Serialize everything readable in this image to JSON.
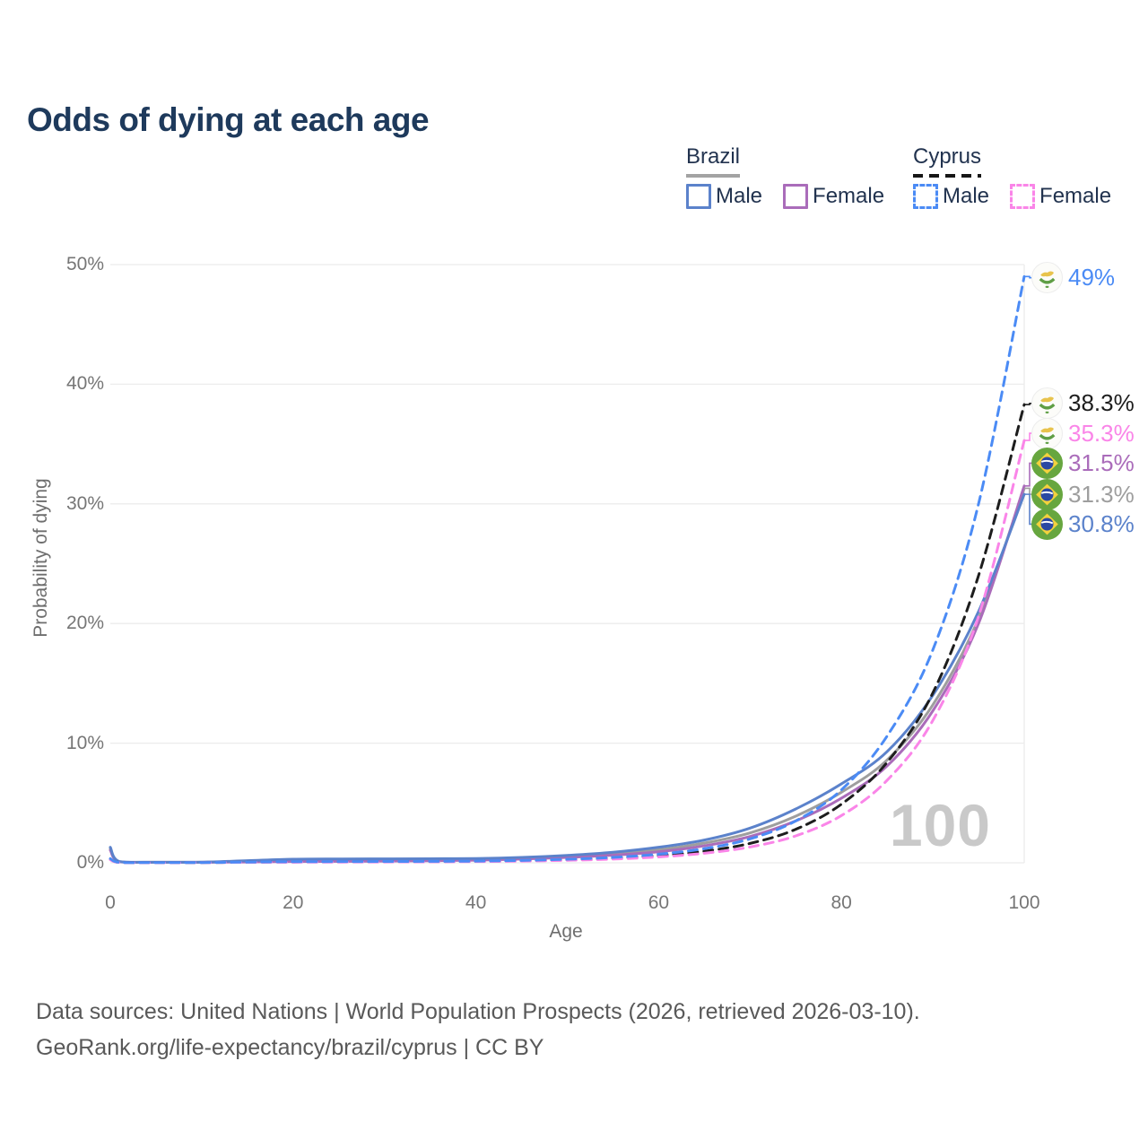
{
  "header": {
    "title": "Odds of dying at each age"
  },
  "legend": {
    "brazil": {
      "title": "Brazil",
      "male_label": "Male",
      "female_label": "Female"
    },
    "cyprus": {
      "title": "Cyprus",
      "male_label": "Male",
      "female_label": "Female"
    }
  },
  "watermark": "100",
  "footer": {
    "line1": "Data sources: United Nations | World Population Prospects (2026, retrieved 2026-03-10).",
    "line2": "GeoRank.org/life-expectancy/brazil/cyprus | CC BY"
  },
  "colors": {
    "title": "#1e3a5c",
    "legend_text": "#22334f",
    "brazil_underline": "#a3a3a3",
    "cyprus_underline": "#161616",
    "brazil_male": "#5b82cb",
    "brazil_female": "#aa6cba",
    "brazil_all": "#9e9e9e",
    "cyprus_male": "#4b8bf5",
    "cyprus_all": "#1d1d1d",
    "cyprus_female": "#fa85e8",
    "grid": "#ececec",
    "axis_text": "#767676",
    "watermark": "#c9c9c9",
    "flag_brazil_green": "#67a63f",
    "flag_brazil_yellow": "#f3d23d",
    "flag_brazil_blue": "#2b49a3",
    "flag_cyprus_copper": "#e8c34c",
    "flag_cyprus_green": "#5f9e45"
  },
  "chart_data": {
    "type": "line",
    "title": "Odds of dying at each age",
    "xlabel": "Age",
    "ylabel": "Probability of dying",
    "xlim": [
      0,
      100
    ],
    "ylim": [
      0,
      50
    ],
    "x_ticks": [
      0,
      20,
      40,
      60,
      80,
      100
    ],
    "y_ticks": [
      0,
      10,
      20,
      30,
      40,
      50
    ],
    "y_tick_suffix": "%",
    "grid": "horizontal plus right vertical edge line at age 100",
    "legend_position": "top-right",
    "x": [
      0,
      1,
      5,
      10,
      15,
      20,
      25,
      30,
      35,
      40,
      45,
      50,
      55,
      60,
      65,
      70,
      75,
      80,
      85,
      90,
      95,
      100
    ],
    "series": [
      {
        "name": "Brazil Both sexes",
        "country": "Brazil",
        "style": "solid",
        "color_key": "brazil_all",
        "values": [
          1.18,
          0.09,
          0.05,
          0.05,
          0.12,
          0.2,
          0.22,
          0.23,
          0.25,
          0.29,
          0.38,
          0.53,
          0.75,
          1.1,
          1.65,
          2.5,
          3.9,
          5.9,
          8.6,
          13.2,
          20.4,
          31.3
        ]
      },
      {
        "name": "Brazil Female",
        "country": "Brazil",
        "style": "solid",
        "color_key": "brazil_female",
        "values": [
          1.05,
          0.08,
          0.04,
          0.04,
          0.07,
          0.1,
          0.12,
          0.14,
          0.17,
          0.22,
          0.31,
          0.45,
          0.64,
          0.92,
          1.42,
          2.2,
          3.5,
          5.4,
          8.1,
          12.7,
          20.0,
          31.5
        ]
      },
      {
        "name": "Brazil Male",
        "country": "Brazil",
        "style": "solid",
        "color_key": "brazil_male",
        "values": [
          1.3,
          0.1,
          0.05,
          0.06,
          0.18,
          0.3,
          0.32,
          0.33,
          0.34,
          0.36,
          0.45,
          0.62,
          0.88,
          1.3,
          1.9,
          2.9,
          4.5,
          6.6,
          9.3,
          14.0,
          21.0,
          30.8
        ]
      },
      {
        "name": "Cyprus Both sexes",
        "country": "Cyprus",
        "style": "dashed",
        "color_key": "cyprus_all",
        "values": [
          0.3,
          0.03,
          0.02,
          0.02,
          0.05,
          0.07,
          0.08,
          0.09,
          0.1,
          0.12,
          0.17,
          0.25,
          0.38,
          0.6,
          0.97,
          1.62,
          2.8,
          4.9,
          8.4,
          14.2,
          24.0,
          38.3
        ]
      },
      {
        "name": "Cyprus Female",
        "country": "Cyprus",
        "style": "dashed",
        "color_key": "cyprus_female",
        "values": [
          0.25,
          0.02,
          0.01,
          0.02,
          0.04,
          0.05,
          0.06,
          0.07,
          0.08,
          0.1,
          0.14,
          0.21,
          0.31,
          0.49,
          0.8,
          1.32,
          2.25,
          3.95,
          6.9,
          11.9,
          20.6,
          35.3
        ]
      },
      {
        "name": "Cyprus Male",
        "country": "Cyprus",
        "style": "dashed",
        "color_key": "cyprus_male",
        "values": [
          0.35,
          0.03,
          0.02,
          0.02,
          0.06,
          0.09,
          0.1,
          0.11,
          0.12,
          0.14,
          0.2,
          0.3,
          0.45,
          0.72,
          1.18,
          2.0,
          3.5,
          6.1,
          10.6,
          17.8,
          30.0,
          49.0
        ]
      }
    ],
    "end_labels": [
      {
        "text": "49%",
        "value": 49.0,
        "label_pct": 48.9,
        "flag": "cyprus",
        "color_key": "cyprus_male"
      },
      {
        "text": "38.3%",
        "value": 38.3,
        "label_pct": 38.4,
        "flag": "cyprus",
        "color_key": "cyprus_all"
      },
      {
        "text": "35.3%",
        "value": 35.3,
        "label_pct": 35.9,
        "flag": "cyprus",
        "color_key": "cyprus_female"
      },
      {
        "text": "31.5%",
        "value": 31.5,
        "label_pct": 33.4,
        "flag": "brazil",
        "color_key": "brazil_female"
      },
      {
        "text": "31.3%",
        "value": 31.3,
        "label_pct": 30.8,
        "flag": "brazil",
        "color_key": "brazil_all"
      },
      {
        "text": "30.8%",
        "value": 30.8,
        "label_pct": 28.3,
        "flag": "brazil",
        "color_key": "brazil_male"
      }
    ]
  }
}
